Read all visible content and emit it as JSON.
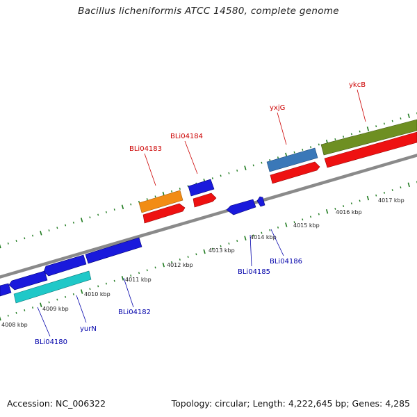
{
  "title": "Bacillus licheniformis ATCC 14580, complete genome",
  "footer": {
    "accession": "Accession: NC_006322",
    "topology": "Topology: circular; Length: 4,222,645 bp; Genes: 4,285"
  },
  "scale_labels": [
    "4008 kbp",
    "4009 kbp",
    "4010 kbp",
    "4011 kbp",
    "4012 kbp",
    "4013 kbp",
    "4014 kbp",
    "4015 kbp",
    "4016 kbp",
    "4017 kbp"
  ],
  "gene_labels_top": [
    "BLi04183",
    "BLi04184",
    "yxjG",
    "ykcB"
  ],
  "gene_labels_bottom": [
    "BLi04180",
    "yurN",
    "BLi04182",
    "BLi04185",
    "BLi04186"
  ],
  "colors": {
    "backbone": "#8c8c8c",
    "ticks": "#1e7a1e",
    "forward_label": "#cc0000",
    "reverse_label": "#0000aa",
    "cds_blue": "#1a1adc",
    "cds_red": "#ee1111",
    "cds_cyan": "#1fc8c8",
    "cds_orange": "#f28c14",
    "cds_steel": "#3a78b8",
    "cds_olive": "#6e8f22"
  }
}
